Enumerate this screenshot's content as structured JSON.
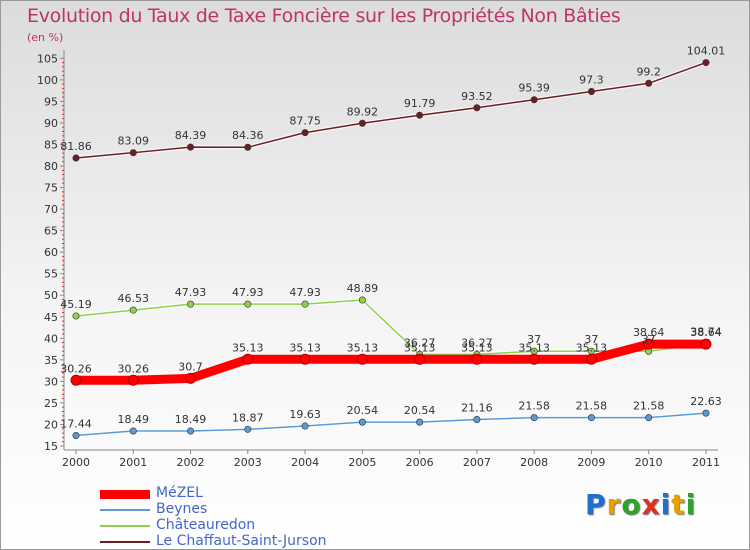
{
  "chart_data": {
    "type": "line",
    "title": "Evolution du Taux de Taxe Foncière sur les Propriétés Non Bâties",
    "unit_label": "(en %)",
    "xlabel": "",
    "ylabel": "",
    "categories": [
      "2000",
      "2001",
      "2002",
      "2003",
      "2004",
      "2005",
      "2006",
      "2007",
      "2008",
      "2009",
      "2010",
      "2011"
    ],
    "yticks": [
      "15",
      "20",
      "25",
      "30",
      "35",
      "40",
      "45",
      "50",
      "55",
      "60",
      "65",
      "70",
      "75",
      "80",
      "85",
      "90",
      "95",
      "100",
      "105"
    ],
    "ylim": [
      15,
      106
    ],
    "grid": false,
    "legend_position": "bottom-left",
    "series": [
      {
        "name": "Le Chaffaut-Saint-Jurson",
        "color": "#6b1f25",
        "values": [
          81.86,
          83.09,
          84.39,
          84.36,
          87.75,
          89.92,
          91.79,
          93.52,
          95.39,
          97.3,
          99.2,
          104.01
        ],
        "labels": [
          "81.86",
          "83.09",
          "84.39",
          "84.36",
          "87.75",
          "89.92",
          "91.79",
          "93.52",
          "95.39",
          "97.3",
          "99.2",
          "104.01"
        ]
      },
      {
        "name": "Châteauredon",
        "color": "#8fd14f",
        "values": [
          45.19,
          46.53,
          47.93,
          47.93,
          47.93,
          48.89,
          36.27,
          36.27,
          37,
          37,
          37,
          38.74
        ],
        "labels": [
          "45.19",
          "46.53",
          "47.93",
          "47.93",
          "47.93",
          "48.89",
          "36.27",
          "36.27",
          "37",
          "37",
          "37",
          "38.74"
        ]
      },
      {
        "name": "MéZEL",
        "color": "#ff0000",
        "values": [
          30.26,
          30.26,
          30.7,
          35.13,
          35.13,
          35.13,
          35.13,
          35.13,
          35.13,
          35.13,
          38.64,
          38.64
        ],
        "labels": [
          "30.26",
          "30.26",
          "30.7",
          "35.13",
          "35.13",
          "35.13",
          "35.13",
          "35.13",
          "35.13",
          "35.13",
          "38.64",
          "38.64"
        ]
      },
      {
        "name": "Beynes",
        "color": "#5b9bd5",
        "values": [
          17.44,
          18.49,
          18.49,
          18.87,
          19.63,
          20.54,
          20.54,
          21.16,
          21.58,
          21.58,
          21.58,
          22.63
        ],
        "labels": [
          "17.44",
          "18.49",
          "18.49",
          "18.87",
          "19.63",
          "20.54",
          "20.54",
          "21.16",
          "21.58",
          "21.58",
          "21.58",
          "22.63"
        ]
      }
    ]
  },
  "legend": [
    {
      "name": "MéZEL",
      "color": "#ff0000",
      "thickness": "thick"
    },
    {
      "name": "Beynes",
      "color": "#5b9bd5",
      "thickness": "thin"
    },
    {
      "name": "Châteauredon",
      "color": "#8fd14f",
      "thickness": "thin"
    },
    {
      "name": "Le Chaffaut-Saint-Jurson",
      "color": "#6b1f25",
      "thickness": "thin"
    }
  ],
  "brand": {
    "letters": [
      "P",
      "r",
      "o",
      "x",
      "i",
      "t",
      "i"
    ],
    "colors": [
      "#1f6fd0",
      "#e8a000",
      "#2aa52a",
      "#e03020",
      "#1f6fd0",
      "#e8a000",
      "#2aa52a"
    ]
  }
}
